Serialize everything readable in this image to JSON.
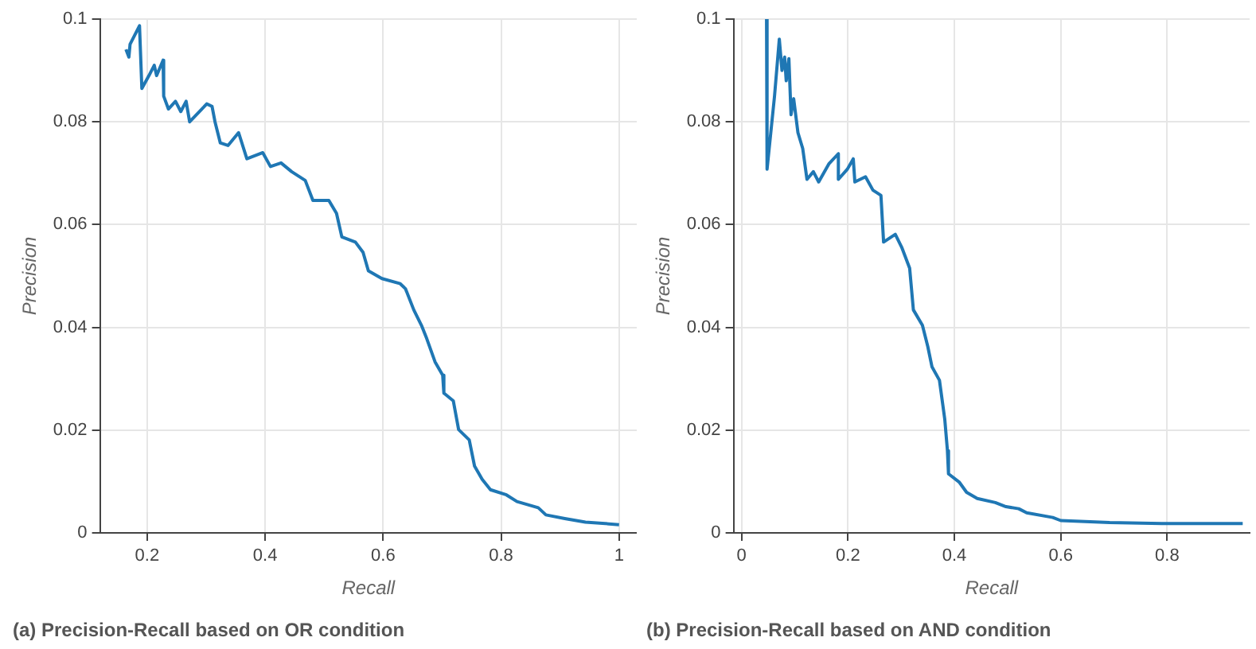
{
  "chart_data": [
    {
      "type": "line",
      "title": "(a) Precision-Recall based on OR condition",
      "xlabel": "Recall",
      "ylabel": "Precision",
      "xlim": [
        0.12,
        1.03
      ],
      "ylim": [
        0,
        0.1
      ],
      "xticks": [
        0.2,
        0.4,
        0.6,
        0.8,
        1
      ],
      "yticks": [
        0,
        0.02,
        0.04,
        0.06,
        0.08,
        0.1
      ],
      "grid": true,
      "legend": false,
      "marker": "none",
      "line_style": "solid",
      "series": [
        {
          "color": "#1f77b4",
          "x": [
            0.164,
            0.169,
            0.171,
            0.187,
            0.191,
            0.203,
            0.212,
            0.216,
            0.227,
            0.228,
            0.236,
            0.248,
            0.257,
            0.266,
            0.272,
            0.301,
            0.31,
            0.315,
            0.324,
            0.337,
            0.355,
            0.369,
            0.396,
            0.409,
            0.427,
            0.445,
            0.468,
            0.481,
            0.508,
            0.521,
            0.53,
            0.553,
            0.566,
            0.575,
            0.598,
            0.629,
            0.638,
            0.652,
            0.665,
            0.674,
            0.688,
            0.701,
            0.703,
            0.719,
            0.728,
            0.746,
            0.755,
            0.768,
            0.782,
            0.809,
            0.827,
            0.863,
            0.876,
            0.908,
            0.943,
            1.0
          ],
          "values": [
            0.0941,
            0.0926,
            0.0951,
            0.0987,
            0.0865,
            0.089,
            0.091,
            0.089,
            0.092,
            0.085,
            0.0825,
            0.084,
            0.082,
            0.084,
            0.08,
            0.0835,
            0.083,
            0.08,
            0.0759,
            0.0754,
            0.0779,
            0.0728,
            0.074,
            0.0713,
            0.072,
            0.0703,
            0.0686,
            0.0647,
            0.0647,
            0.0622,
            0.0576,
            0.0566,
            0.0546,
            0.051,
            0.0495,
            0.0485,
            0.0475,
            0.0434,
            0.0404,
            0.0378,
            0.0333,
            0.0307,
            0.0272,
            0.0257,
            0.0201,
            0.0181,
            0.013,
            0.0104,
            0.0084,
            0.0074,
            0.0061,
            0.0049,
            0.0035,
            0.0028,
            0.0021,
            0.0016
          ]
        }
      ]
    },
    {
      "type": "line",
      "title": "(b) Precision-Recall based on AND condition",
      "xlabel": "Recall",
      "ylabel": "Precision",
      "xlim": [
        -0.015,
        0.955
      ],
      "ylim": [
        0,
        0.1
      ],
      "xticks": [
        0,
        0.2,
        0.4,
        0.6,
        0.8
      ],
      "yticks": [
        0,
        0.02,
        0.04,
        0.06,
        0.08,
        0.1
      ],
      "grid": true,
      "legend": false,
      "marker": "none",
      "line_style": "solid",
      "series": [
        {
          "color": "#1f77b4",
          "x": [
            0.047,
            0.048,
            0.062,
            0.071,
            0.076,
            0.081,
            0.084,
            0.089,
            0.093,
            0.098,
            0.106,
            0.115,
            0.123,
            0.135,
            0.145,
            0.164,
            0.182,
            0.182,
            0.199,
            0.21,
            0.213,
            0.233,
            0.247,
            0.262,
            0.267,
            0.289,
            0.301,
            0.316,
            0.323,
            0.34,
            0.35,
            0.358,
            0.372,
            0.382,
            0.387,
            0.389,
            0.409,
            0.423,
            0.443,
            0.477,
            0.497,
            0.521,
            0.536,
            0.585,
            0.6,
            0.692,
            0.79,
            0.942
          ],
          "values": [
            0.1,
            0.0708,
            0.085,
            0.0961,
            0.09,
            0.0926,
            0.088,
            0.0923,
            0.0814,
            0.0845,
            0.0779,
            0.0748,
            0.0688,
            0.0703,
            0.0683,
            0.0718,
            0.0738,
            0.0688,
            0.0708,
            0.0728,
            0.0683,
            0.0693,
            0.0667,
            0.0657,
            0.0566,
            0.0581,
            0.0556,
            0.0515,
            0.0434,
            0.0404,
            0.0363,
            0.0323,
            0.0297,
            0.0221,
            0.016,
            0.0115,
            0.0099,
            0.0079,
            0.0067,
            0.0059,
            0.0051,
            0.0047,
            0.0039,
            0.003,
            0.0024,
            0.002,
            0.0018,
            0.0018
          ]
        }
      ]
    }
  ]
}
